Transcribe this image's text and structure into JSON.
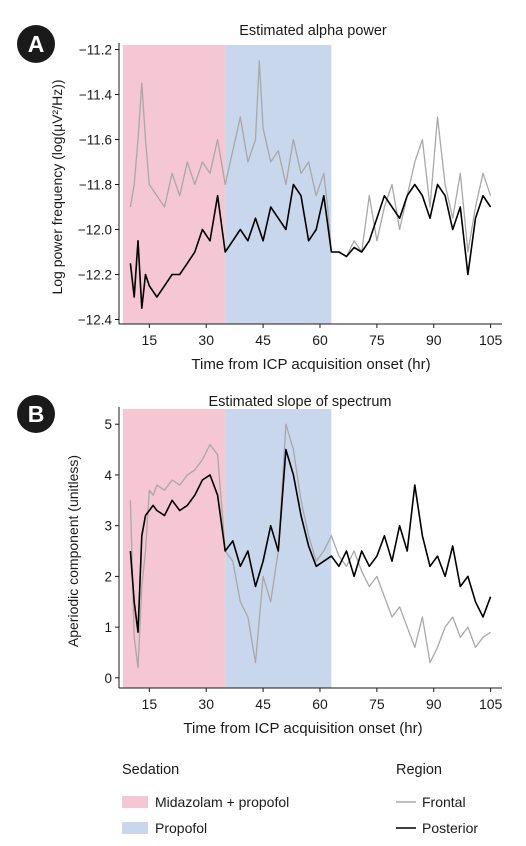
{
  "panels": [
    {
      "badge": "A",
      "title": "Estimated alpha power",
      "xlabel": "Time from ICP acquisition onset (hr)",
      "ylabel": "Log power frequency (log(µV²/Hz))",
      "chart_data": {
        "type": "line",
        "title": "Estimated alpha power",
        "xlabel": "Time from ICP acquisition onset (hr)",
        "ylabel": "Log power frequency (log(µV²/Hz))",
        "xlim": [
          7,
          108
        ],
        "ylim": [
          -12.42,
          -11.18
        ],
        "xticks": [
          15,
          30,
          45,
          60,
          75,
          90,
          105
        ],
        "yticks": [
          -12.4,
          -12.2,
          -12.0,
          -11.8,
          -11.6,
          -11.4,
          -11.2
        ],
        "ytick_labels": [
          "−12.4",
          "−12.2",
          "−12.0",
          "−11.8",
          "−11.6",
          "−11.4",
          "−11.2"
        ],
        "shaded_regions": [
          {
            "label": "Midazolam + propofol",
            "x0": 8,
            "x1": 35,
            "color": "#f5c6d3"
          },
          {
            "label": "Propofol",
            "x0": 35,
            "x1": 63,
            "color": "#c9d7ec"
          }
        ],
        "series": [
          {
            "name": "Frontal",
            "color": "#a8a8a8",
            "x": [
              10,
              11,
              12,
              13,
              14,
              15,
              17,
              19,
              21,
              23,
              25,
              27,
              29,
              31,
              33,
              35,
              37,
              39,
              41,
              43,
              44,
              45,
              47,
              49,
              51,
              53,
              55,
              57,
              59,
              61,
              62,
              63,
              65,
              67,
              69,
              71,
              73,
              75,
              77,
              79,
              81,
              83,
              85,
              87,
              89,
              91,
              93,
              95,
              97,
              99,
              101,
              103,
              105
            ],
            "y": [
              -11.9,
              -11.8,
              -11.6,
              -11.35,
              -11.6,
              -11.8,
              -11.85,
              -11.9,
              -11.75,
              -11.85,
              -11.7,
              -11.8,
              -11.7,
              -11.75,
              -11.6,
              -11.8,
              -11.65,
              -11.5,
              -11.7,
              -11.6,
              -11.25,
              -11.55,
              -11.7,
              -11.65,
              -11.8,
              -11.6,
              -11.75,
              -11.7,
              -11.85,
              -11.75,
              -11.9,
              -12.1,
              -12.1,
              -12.12,
              -12.05,
              -12.1,
              -11.85,
              -12.05,
              -11.9,
              -11.8,
              -12.0,
              -11.85,
              -11.7,
              -11.6,
              -11.9,
              -11.5,
              -11.8,
              -11.95,
              -11.75,
              -12.1,
              -11.9,
              -11.75,
              -11.85
            ]
          },
          {
            "name": "Posterior",
            "color": "#000000",
            "x": [
              10,
              11,
              12,
              13,
              14,
              15,
              17,
              19,
              21,
              23,
              25,
              27,
              29,
              31,
              33,
              35,
              37,
              39,
              41,
              43,
              45,
              47,
              49,
              51,
              53,
              55,
              57,
              59,
              61,
              63,
              65,
              67,
              69,
              71,
              73,
              75,
              77,
              79,
              81,
              83,
              85,
              87,
              89,
              91,
              93,
              95,
              97,
              99,
              101,
              103,
              105
            ],
            "y": [
              -12.15,
              -12.3,
              -12.05,
              -12.35,
              -12.2,
              -12.25,
              -12.3,
              -12.25,
              -12.2,
              -12.2,
              -12.15,
              -12.1,
              -12.0,
              -12.05,
              -11.85,
              -12.1,
              -12.05,
              -12.0,
              -12.05,
              -11.95,
              -12.05,
              -11.9,
              -11.95,
              -12.0,
              -11.8,
              -11.85,
              -12.05,
              -12.0,
              -11.85,
              -12.1,
              -12.1,
              -12.12,
              -12.08,
              -12.1,
              -12.05,
              -11.95,
              -11.85,
              -11.9,
              -11.95,
              -11.85,
              -11.8,
              -11.85,
              -11.95,
              -11.8,
              -11.85,
              -12.0,
              -11.9,
              -12.2,
              -11.95,
              -11.85,
              -11.9
            ]
          }
        ]
      }
    },
    {
      "badge": "B",
      "title": "Estimated slope of spectrum",
      "xlabel": "Time from ICP acquisition onset (hr)",
      "ylabel": "Aperiodic component (unitless)",
      "chart_data": {
        "type": "line",
        "title": "Estimated slope of spectrum",
        "xlabel": "Time from ICP acquisition onset (hr)",
        "ylabel": "Aperiodic component (unitless)",
        "xlim": [
          7,
          108
        ],
        "ylim": [
          -0.2,
          5.3
        ],
        "xticks": [
          15,
          30,
          45,
          60,
          75,
          90,
          105
        ],
        "yticks": [
          0,
          1,
          2,
          3,
          4,
          5
        ],
        "ytick_labels": [
          "0",
          "1",
          "2",
          "3",
          "4",
          "5"
        ],
        "shaded_regions": [
          {
            "label": "Midazolam + propofol",
            "x0": 8,
            "x1": 35,
            "color": "#f5c6d3"
          },
          {
            "label": "Propofol",
            "x0": 35,
            "x1": 63,
            "color": "#c9d7ec"
          }
        ],
        "series": [
          {
            "name": "Frontal",
            "color": "#a8a8a8",
            "x": [
              10,
              11,
              12,
              13,
              14,
              15,
              16,
              17,
              19,
              21,
              23,
              25,
              27,
              29,
              31,
              33,
              35,
              37,
              39,
              41,
              43,
              45,
              47,
              49,
              51,
              53,
              55,
              57,
              59,
              61,
              63,
              65,
              67,
              69,
              71,
              73,
              75,
              77,
              79,
              81,
              83,
              85,
              87,
              89,
              91,
              93,
              95,
              97,
              99,
              101,
              103,
              105
            ],
            "y": [
              3.5,
              0.8,
              0.2,
              1.8,
              2.5,
              3.7,
              3.6,
              3.8,
              3.7,
              3.9,
              3.8,
              4.0,
              4.1,
              4.3,
              4.6,
              4.4,
              2.5,
              2.3,
              1.5,
              1.2,
              0.3,
              2.0,
              1.5,
              2.5,
              5.0,
              4.5,
              3.5,
              2.8,
              2.3,
              2.5,
              2.8,
              2.4,
              2.2,
              2.5,
              2.1,
              1.8,
              2.0,
              1.6,
              1.2,
              1.4,
              1.0,
              0.6,
              1.2,
              0.3,
              0.6,
              1.0,
              1.2,
              0.8,
              1.0,
              0.6,
              0.8,
              0.9
            ]
          },
          {
            "name": "Posterior",
            "color": "#000000",
            "x": [
              10,
              11,
              12,
              13,
              14,
              15,
              16,
              17,
              19,
              21,
              23,
              25,
              27,
              29,
              31,
              33,
              35,
              37,
              39,
              41,
              43,
              45,
              47,
              49,
              51,
              53,
              55,
              57,
              59,
              61,
              63,
              65,
              67,
              69,
              71,
              73,
              75,
              77,
              79,
              81,
              83,
              85,
              87,
              89,
              91,
              93,
              95,
              97,
              99,
              101,
              103,
              105
            ],
            "y": [
              2.5,
              1.5,
              0.9,
              2.8,
              3.2,
              3.3,
              3.4,
              3.3,
              3.2,
              3.5,
              3.3,
              3.4,
              3.6,
              3.9,
              4.0,
              3.6,
              2.5,
              2.7,
              2.2,
              2.5,
              1.8,
              2.3,
              3.0,
              2.5,
              4.5,
              4.0,
              3.2,
              2.6,
              2.2,
              2.3,
              2.4,
              2.2,
              2.5,
              2.0,
              2.5,
              2.2,
              2.4,
              2.8,
              2.3,
              3.0,
              2.5,
              3.8,
              2.8,
              2.2,
              2.4,
              2.0,
              2.6,
              1.8,
              2.0,
              1.5,
              1.2,
              1.6
            ]
          }
        ]
      }
    }
  ],
  "legend": {
    "sedation_title": "Sedation",
    "sedation_items": [
      {
        "label": "Midazolam + propofol",
        "color": "#f5c6d3"
      },
      {
        "label": "Propofol",
        "color": "#c9d7ec"
      }
    ],
    "region_title": "Region",
    "region_items": [
      {
        "label": "Frontal",
        "color": "#a8a8a8"
      },
      {
        "label": "Posterior",
        "color": "#000000"
      }
    ]
  }
}
